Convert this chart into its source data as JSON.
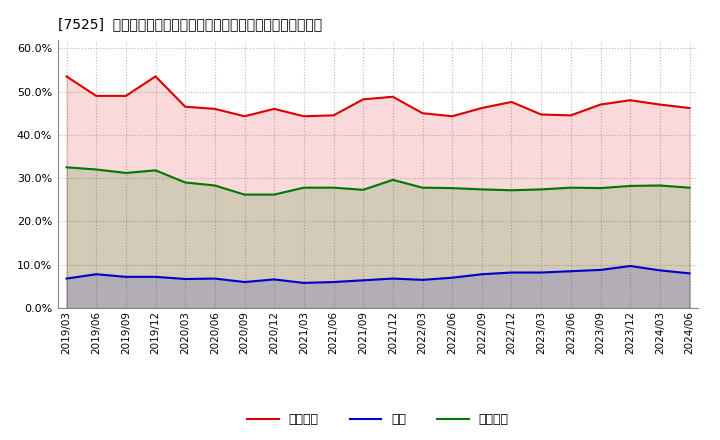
{
  "title": "[7525]  売上債権、在庫、買入債務の総資産に対する比率の推移",
  "ylim": [
    0.0,
    0.62
  ],
  "yticks": [
    0.0,
    0.1,
    0.2,
    0.3,
    0.4,
    0.5,
    0.6
  ],
  "background_color": "#ffffff",
  "grid_color": "#bbbbbb",
  "dates": [
    "2019/03",
    "2019/06",
    "2019/09",
    "2019/12",
    "2020/03",
    "2020/06",
    "2020/09",
    "2020/12",
    "2021/03",
    "2021/06",
    "2021/09",
    "2021/12",
    "2022/03",
    "2022/06",
    "2022/09",
    "2022/12",
    "2023/03",
    "2023/06",
    "2023/09",
    "2023/12",
    "2024/03",
    "2024/06"
  ],
  "urikake": [
    0.535,
    0.49,
    0.49,
    0.535,
    0.465,
    0.46,
    0.443,
    0.46,
    0.443,
    0.445,
    0.482,
    0.488,
    0.45,
    0.443,
    0.462,
    0.476,
    0.447,
    0.445,
    0.47,
    0.48,
    0.47,
    0.462
  ],
  "zaiko": [
    0.068,
    0.078,
    0.072,
    0.072,
    0.067,
    0.068,
    0.06,
    0.066,
    0.058,
    0.06,
    0.064,
    0.068,
    0.065,
    0.07,
    0.078,
    0.082,
    0.082,
    0.085,
    0.088,
    0.097,
    0.087,
    0.08
  ],
  "kaiire": [
    0.325,
    0.32,
    0.312,
    0.318,
    0.29,
    0.283,
    0.262,
    0.262,
    0.278,
    0.278,
    0.273,
    0.296,
    0.278,
    0.277,
    0.274,
    0.272,
    0.274,
    0.278,
    0.277,
    0.282,
    0.283,
    0.278
  ],
  "urikake_color": "#dd0000",
  "zaiko_color": "#0000cc",
  "kaiire_color": "#007700",
  "legend_labels": [
    "売上債権",
    "在庫",
    "買入債務"
  ],
  "title_fontsize": 10,
  "tick_fontsize": 7.5,
  "legend_fontsize": 9
}
